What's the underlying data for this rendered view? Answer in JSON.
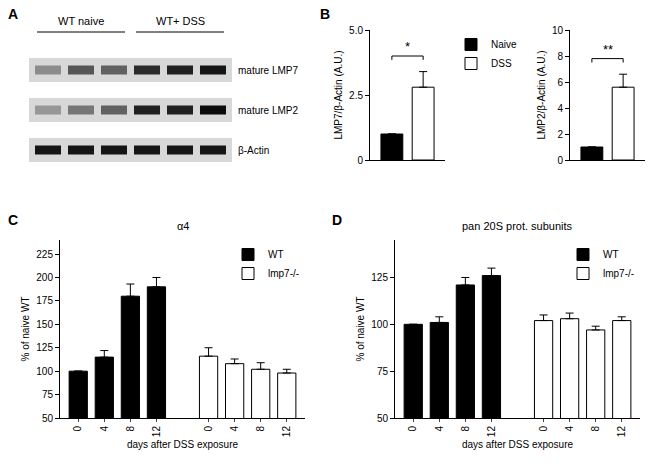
{
  "chart_data": [
    {
      "type": "blot",
      "panel": "A",
      "groups": [
        {
          "label": "WT naive",
          "lanes": 3
        },
        {
          "label": "WT+ DSS",
          "lanes": 3
        }
      ],
      "rows": [
        {
          "label": "mature LMP7",
          "values": [
            0.35,
            0.6,
            0.55,
            0.8,
            0.85,
            0.9
          ]
        },
        {
          "label": "mature LMP2",
          "values": [
            0.3,
            0.45,
            0.55,
            0.85,
            0.85,
            0.95
          ]
        },
        {
          "label": "β-Actin",
          "values": [
            0.9,
            0.9,
            0.9,
            0.9,
            0.9,
            0.9
          ]
        }
      ]
    },
    {
      "type": "bar",
      "panel": "B",
      "ylabel": "LMP7/β-Actin (A.U.)",
      "ylim": [
        0,
        5
      ],
      "yticks": [
        0,
        2.5,
        {
          "value": 5,
          "label": "5.0"
        }
      ],
      "tick_labels": "y",
      "legend": "right",
      "annotations": [
        "*"
      ],
      "series": [
        {
          "name": "Naive",
          "color": "#000000",
          "values": [
            1
          ],
          "errors": [
            0
          ]
        },
        {
          "name": "DSS",
          "color": "#ffffff",
          "values": [
            2.8
          ],
          "errors": [
            0.6
          ]
        }
      ]
    },
    {
      "type": "bar",
      "ylabel": "LMP2/β-Actin (A.U.)",
      "ylim": [
        0,
        10
      ],
      "yticks": [
        0,
        2,
        4,
        6,
        8,
        10
      ],
      "tick_labels": "y",
      "annotations": [
        "**"
      ],
      "series": [
        {
          "name": "Naive",
          "color": "#000000",
          "values": [
            1
          ],
          "errors": [
            0
          ]
        },
        {
          "name": "DSS",
          "color": "#ffffff",
          "values": [
            5.6
          ],
          "errors": [
            1.0
          ]
        }
      ]
    },
    {
      "type": "bar",
      "panel": "C",
      "title": "α4",
      "ylabel": "% of naive WT",
      "xlabel": "days after DSS exposure",
      "ylim": [
        50,
        240
      ],
      "yticks": [
        50,
        75,
        100,
        125,
        150,
        175,
        200,
        225
      ],
      "legend": "top right",
      "categories": [
        "0",
        "4",
        "8",
        "12",
        null,
        "0",
        "4",
        "8",
        "12"
      ],
      "series": [
        {
          "name": "WT",
          "color": "#000000",
          "values": [
            100,
            115,
            180,
            190,
            null,
            null,
            null,
            null,
            null
          ],
          "errors": [
            0,
            7,
            13,
            10,
            null,
            null,
            null,
            null,
            null
          ]
        },
        {
          "name": "lmp7-/-",
          "color": "#ffffff",
          "values": [
            null,
            null,
            null,
            null,
            null,
            116,
            108,
            102,
            98
          ],
          "errors": [
            null,
            null,
            null,
            null,
            null,
            9,
            5,
            7,
            4
          ]
        }
      ]
    },
    {
      "type": "bar",
      "panel": "D",
      "title": "pan 20S prot. subunits",
      "ylabel": "% of naive WT",
      "xlabel": "days after DSS exposure",
      "ylim": [
        50,
        145
      ],
      "yticks": [
        50,
        75,
        100,
        125
      ],
      "legend": "top right",
      "categories": [
        "0",
        "4",
        "8",
        "12",
        null,
        "0",
        "4",
        "8",
        "12"
      ],
      "series": [
        {
          "name": "WT",
          "color": "#000000",
          "values": [
            100,
            101,
            121,
            126,
            null,
            null,
            null,
            null,
            null
          ],
          "errors": [
            0,
            3,
            4,
            4,
            null,
            null,
            null,
            null,
            null
          ]
        },
        {
          "name": "lmp7-/-",
          "color": "#ffffff",
          "values": [
            null,
            null,
            null,
            null,
            null,
            102,
            103,
            97,
            102
          ],
          "errors": [
            null,
            null,
            null,
            null,
            null,
            3,
            3,
            2,
            2
          ]
        }
      ]
    }
  ]
}
